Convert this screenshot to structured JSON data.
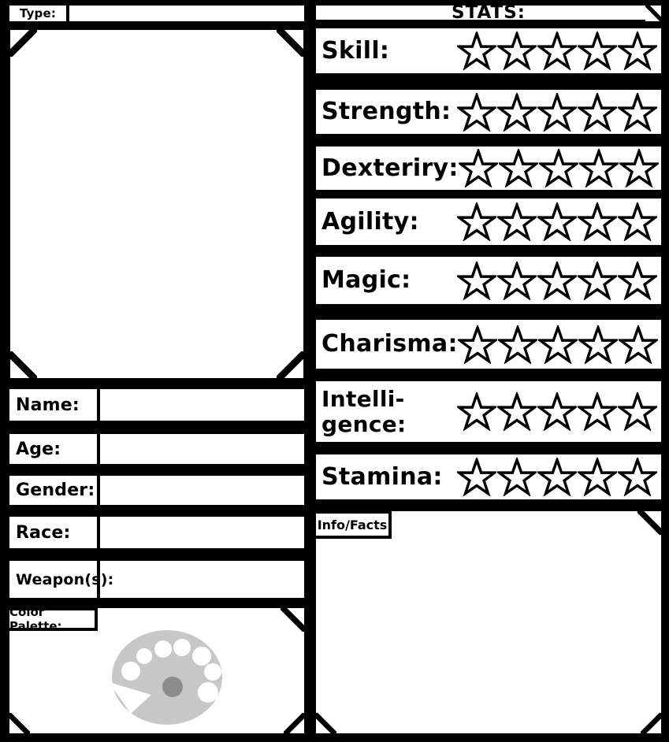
{
  "page": {
    "background": "#000000",
    "box_bg": "#ffffff",
    "ink": "#000000"
  },
  "type_field": {
    "label": "Type:",
    "value": ""
  },
  "stats": {
    "title": "STATS:",
    "stars_per_row": 5,
    "rows": [
      {
        "label": "Skill:",
        "filled": 0
      },
      {
        "label": "Strength:",
        "filled": 0
      },
      {
        "label": "Dexteriry:",
        "filled": 0
      },
      {
        "label": "Agility:",
        "filled": 0
      },
      {
        "label": "Magic:",
        "filled": 0
      },
      {
        "label": "Charisma:",
        "filled": 0
      },
      {
        "label": "Intelli-\ngence:",
        "filled": 0
      },
      {
        "label": "Stamina:",
        "filled": 0
      }
    ]
  },
  "fields": [
    {
      "label": "Name:",
      "value": ""
    },
    {
      "label": "Age:",
      "value": ""
    },
    {
      "label": "Gender:",
      "value": ""
    },
    {
      "label": "Race:",
      "value": ""
    },
    {
      "label": "Weapon(s):",
      "value": ""
    }
  ],
  "color_palette": {
    "label": "Color Palette:",
    "icon": {
      "body": "#c7c7c7",
      "wells": "#ffffff",
      "thumb_hole": "#8c8c8c"
    }
  },
  "info_facts": {
    "label": "Info/Facts",
    "content": ""
  }
}
